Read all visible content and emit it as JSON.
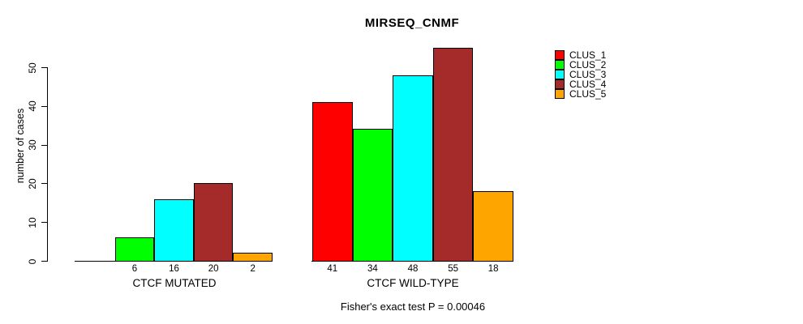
{
  "figure": {
    "title": "MIRSEQ_CNMF",
    "caption": "Fisher's exact test P = 0.00046"
  },
  "chart_data": {
    "type": "bar",
    "title": "MIRSEQ_CNMF",
    "xlabel": "",
    "ylabel": "number of cases",
    "ylim": [
      0,
      55
    ],
    "yticks": [
      0,
      10,
      20,
      30,
      40,
      50
    ],
    "grid": false,
    "legend_position": "right",
    "legend_entries": [
      "CLUS_1",
      "CLUS_2",
      "CLUS_3",
      "CLUS_4",
      "CLUS_5"
    ],
    "categories": [
      "CTCF MUTATED",
      "CTCF WILD-TYPE"
    ],
    "series": [
      {
        "name": "CLUS_1",
        "color": "#FF0000",
        "values": [
          0,
          41
        ]
      },
      {
        "name": "CLUS_2",
        "color": "#00FF00",
        "values": [
          6,
          34
        ]
      },
      {
        "name": "CLUS_3",
        "color": "#00FFFF",
        "values": [
          16,
          48
        ]
      },
      {
        "name": "CLUS_4",
        "color": "#A52A2A",
        "values": [
          20,
          55
        ]
      },
      {
        "name": "CLUS_5",
        "color": "#FFA500",
        "values": [
          2,
          18
        ]
      }
    ],
    "bar_value_labels": [
      [
        null,
        "6",
        "16",
        "20",
        "2"
      ],
      [
        "41",
        "34",
        "48",
        "55",
        "18"
      ]
    ],
    "caption": "Fisher's exact test P = 0.00046"
  }
}
